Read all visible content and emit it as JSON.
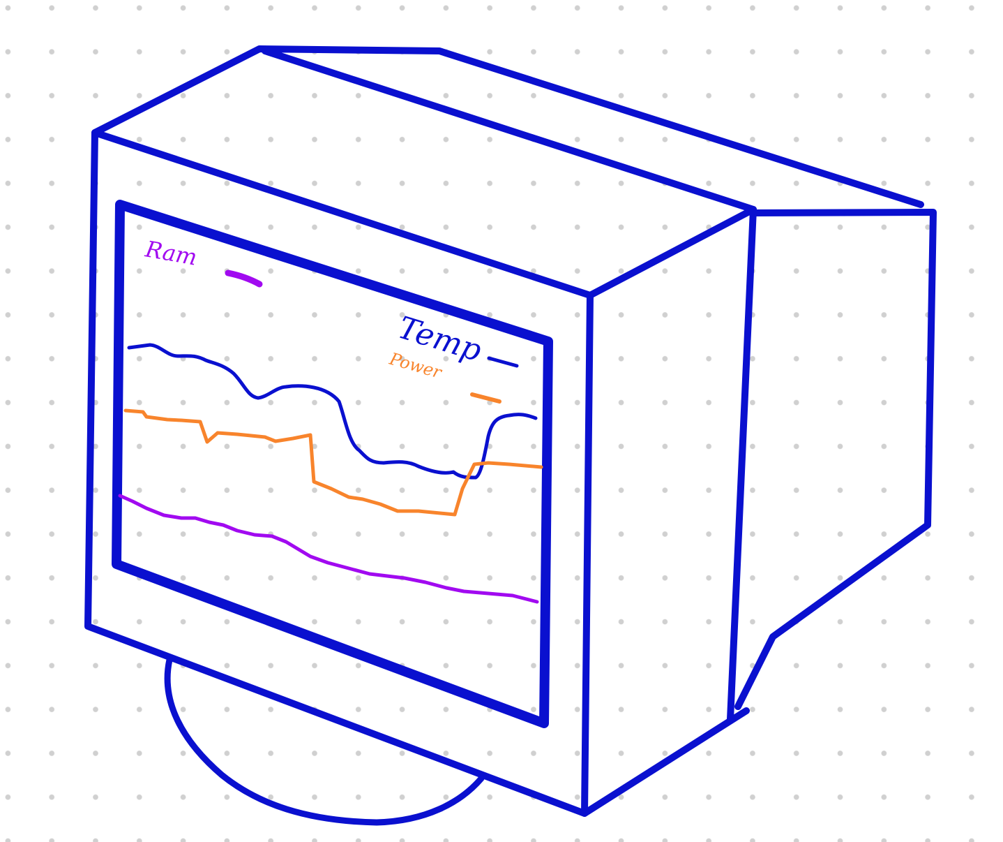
{
  "colors": {
    "outline": "#0a10cf",
    "ram": "#a10af0",
    "temp": "#0a10cf",
    "power": "#f8842c",
    "background": "#ffffff",
    "grid_dot": "#d0d0d0"
  },
  "legend": {
    "ram_label": "Ram",
    "temp_label": "Temp",
    "power_label": "Power"
  }
}
